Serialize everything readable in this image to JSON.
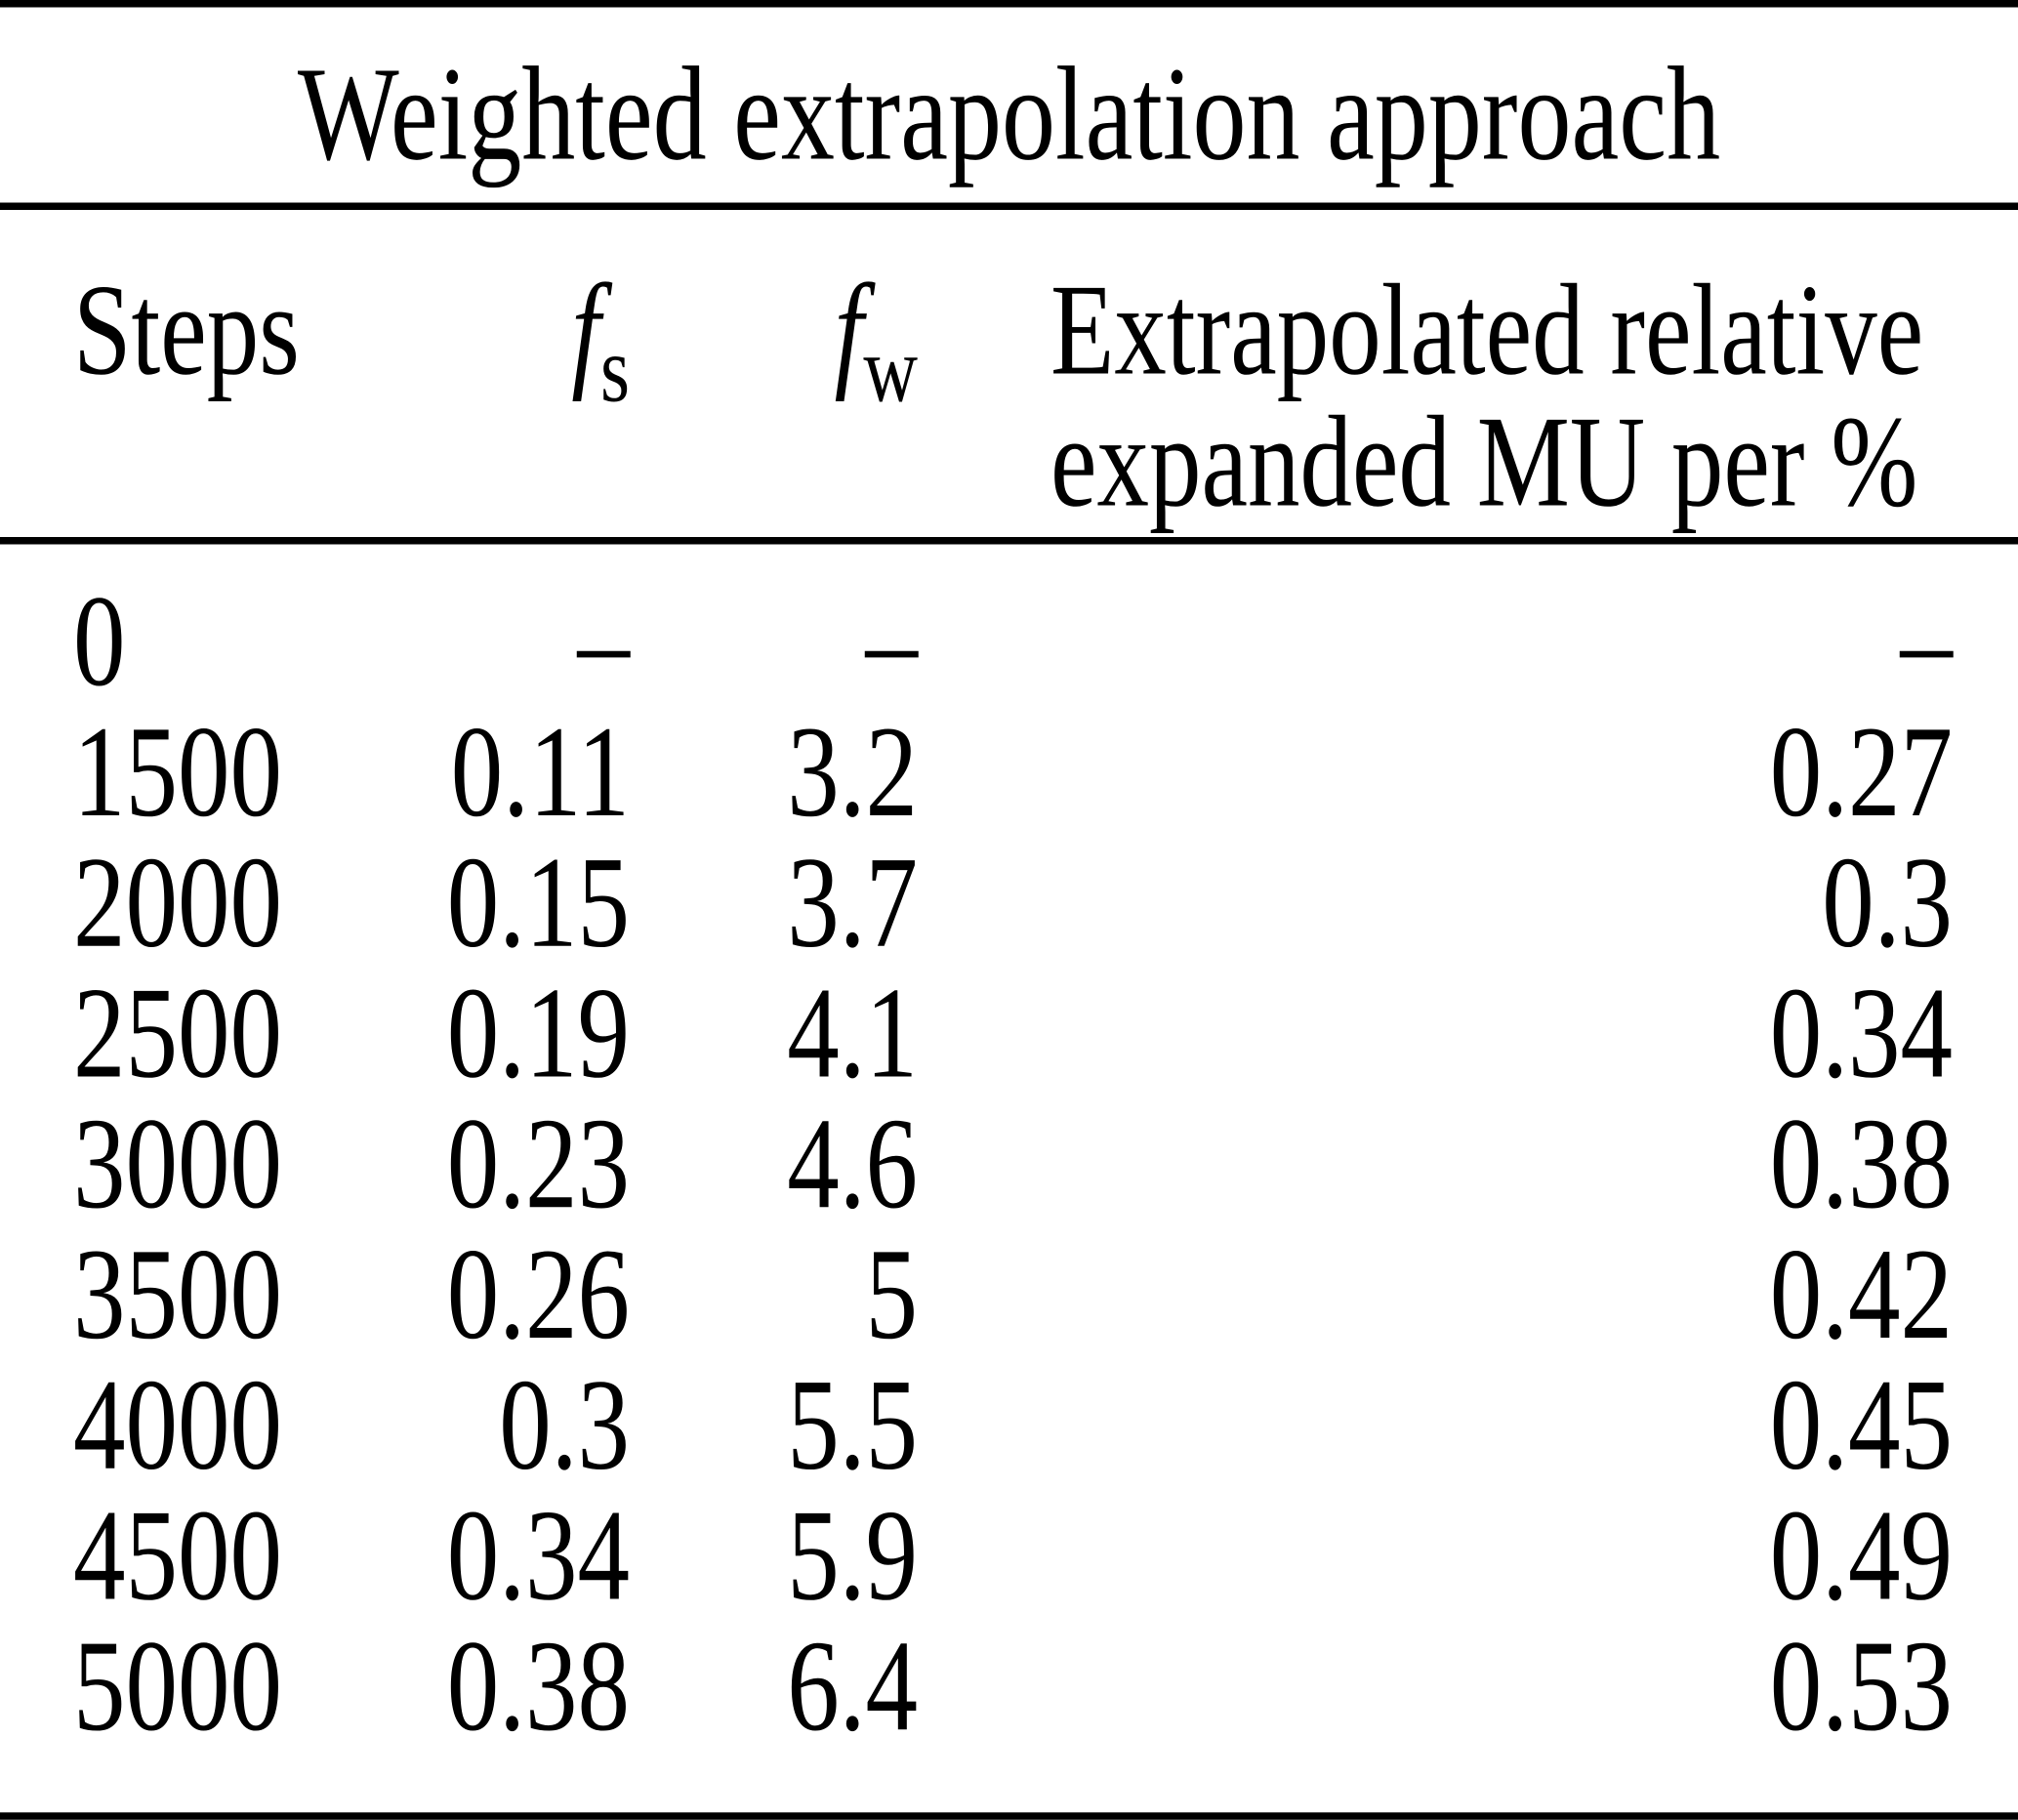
{
  "table": {
    "title": "Weighted extrapolation approach",
    "header": {
      "col1": "Steps",
      "col2": {
        "base": "f",
        "sub": "s"
      },
      "col3": {
        "base": "f",
        "sub": "w"
      },
      "col4_line1": "Extrapolated relative",
      "col4_line2": "expanded MU per %"
    },
    "rows": [
      [
        "0",
        "–",
        "–",
        "–"
      ],
      [
        "1500",
        "0.11",
        "3.2",
        "0.27"
      ],
      [
        "2000",
        "0.15",
        "3.7",
        "0.3"
      ],
      [
        "2500",
        "0.19",
        "4.1",
        "0.34"
      ],
      [
        "3000",
        "0.23",
        "4.6",
        "0.38"
      ],
      [
        "3500",
        "0.26",
        "5",
        "0.42"
      ],
      [
        "4000",
        "0.3",
        "5.5",
        "0.45"
      ],
      [
        "4500",
        "0.34",
        "5.9",
        "0.49"
      ],
      [
        "5000",
        "0.38",
        "6.4",
        "0.53"
      ]
    ],
    "colors": {
      "text": "#000000",
      "background": "#ffffff",
      "rule": "#000000"
    }
  },
  "chart_data": {
    "type": "table",
    "title": "Weighted extrapolation approach",
    "columns": [
      "Steps",
      "f_s",
      "f_w",
      "Extrapolated relative expanded MU per %"
    ],
    "rows": [
      [
        0,
        null,
        null,
        null
      ],
      [
        1500,
        0.11,
        3.2,
        0.27
      ],
      [
        2000,
        0.15,
        3.7,
        0.3
      ],
      [
        2500,
        0.19,
        4.1,
        0.34
      ],
      [
        3000,
        0.23,
        4.6,
        0.38
      ],
      [
        3500,
        0.26,
        5,
        0.42
      ],
      [
        4000,
        0.3,
        5.5,
        0.45
      ],
      [
        4500,
        0.34,
        5.9,
        0.49
      ],
      [
        5000,
        0.38,
        6.4,
        0.53
      ]
    ]
  }
}
